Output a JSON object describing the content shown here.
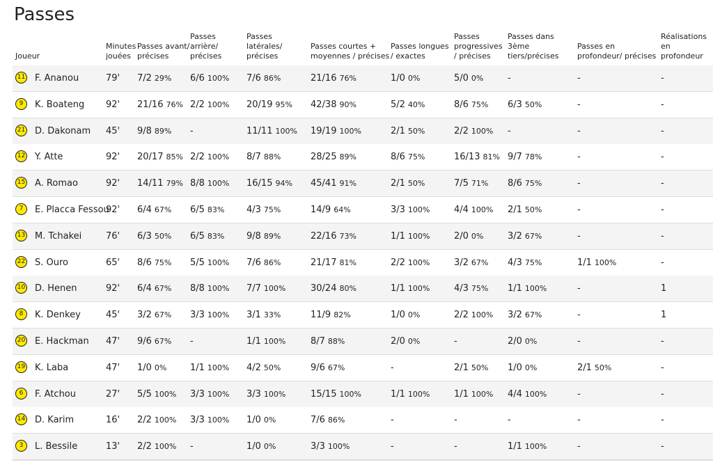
{
  "title": "Passes",
  "table": {
    "headers": [
      "Joueur",
      "Minutes jouées",
      "Passes avant/ précises",
      "Passes arrière/ précises",
      "Passes latérales/ précises",
      "Passes courtes + moyennes / précises",
      "Passes longues / exactes",
      "Passes progressives / précises",
      "Passes dans 3ème tiers/précises",
      "Passes en profondeur/ précises",
      "Réalisations en profondeur"
    ],
    "rows": [
      {
        "number": "11",
        "player": "F. Ananou",
        "minutes": "79'",
        "cells": [
          [
            "7/2",
            "29%"
          ],
          [
            "6/6",
            "100%"
          ],
          [
            "7/6",
            "86%"
          ],
          [
            "21/16",
            "76%"
          ],
          [
            "1/0",
            "0%"
          ],
          [
            "5/0",
            "0%"
          ],
          [
            "-"
          ],
          [
            "-"
          ],
          [
            "-"
          ]
        ]
      },
      {
        "number": "9",
        "player": "K. Boateng",
        "minutes": "92'",
        "cells": [
          [
            "21/16",
            "76%"
          ],
          [
            "2/2",
            "100%"
          ],
          [
            "20/19",
            "95%"
          ],
          [
            "42/38",
            "90%"
          ],
          [
            "5/2",
            "40%"
          ],
          [
            "8/6",
            "75%"
          ],
          [
            "6/3",
            "50%"
          ],
          [
            "-"
          ],
          [
            "-"
          ]
        ]
      },
      {
        "number": "21",
        "player": "D. Dakonam",
        "minutes": "45'",
        "cells": [
          [
            "9/8",
            "89%"
          ],
          [
            "-"
          ],
          [
            "11/11",
            "100%"
          ],
          [
            "19/19",
            "100%"
          ],
          [
            "2/1",
            "50%"
          ],
          [
            "2/2",
            "100%"
          ],
          [
            "-"
          ],
          [
            "-"
          ],
          [
            "-"
          ]
        ]
      },
      {
        "number": "12",
        "player": "Y. Atte",
        "minutes": "92'",
        "cells": [
          [
            "20/17",
            "85%"
          ],
          [
            "2/2",
            "100%"
          ],
          [
            "8/7",
            "88%"
          ],
          [
            "28/25",
            "89%"
          ],
          [
            "8/6",
            "75%"
          ],
          [
            "16/13",
            "81%"
          ],
          [
            "9/7",
            "78%"
          ],
          [
            "-"
          ],
          [
            "-"
          ]
        ]
      },
      {
        "number": "15",
        "player": "A. Romao",
        "minutes": "92'",
        "cells": [
          [
            "14/11",
            "79%"
          ],
          [
            "8/8",
            "100%"
          ],
          [
            "16/15",
            "94%"
          ],
          [
            "45/41",
            "91%"
          ],
          [
            "2/1",
            "50%"
          ],
          [
            "7/5",
            "71%"
          ],
          [
            "8/6",
            "75%"
          ],
          [
            "-"
          ],
          [
            "-"
          ]
        ]
      },
      {
        "number": "7",
        "player": "E. Placca Fessou",
        "minutes": "92'",
        "cells": [
          [
            "6/4",
            "67%"
          ],
          [
            "6/5",
            "83%"
          ],
          [
            "4/3",
            "75%"
          ],
          [
            "14/9",
            "64%"
          ],
          [
            "3/3",
            "100%"
          ],
          [
            "4/4",
            "100%"
          ],
          [
            "2/1",
            "50%"
          ],
          [
            "-"
          ],
          [
            "-"
          ]
        ]
      },
      {
        "number": "13",
        "player": "M. Tchakei",
        "minutes": "76'",
        "cells": [
          [
            "6/3",
            "50%"
          ],
          [
            "6/5",
            "83%"
          ],
          [
            "9/8",
            "89%"
          ],
          [
            "22/16",
            "73%"
          ],
          [
            "1/1",
            "100%"
          ],
          [
            "2/0",
            "0%"
          ],
          [
            "3/2",
            "67%"
          ],
          [
            "-"
          ],
          [
            "-"
          ]
        ]
      },
      {
        "number": "22",
        "player": "S. Ouro",
        "minutes": "65'",
        "cells": [
          [
            "8/6",
            "75%"
          ],
          [
            "5/5",
            "100%"
          ],
          [
            "7/6",
            "86%"
          ],
          [
            "21/17",
            "81%"
          ],
          [
            "2/2",
            "100%"
          ],
          [
            "3/2",
            "67%"
          ],
          [
            "4/3",
            "75%"
          ],
          [
            "1/1",
            "100%"
          ],
          [
            "-"
          ]
        ]
      },
      {
        "number": "10",
        "player": "D. Henen",
        "minutes": "92'",
        "cells": [
          [
            "6/4",
            "67%"
          ],
          [
            "8/8",
            "100%"
          ],
          [
            "7/7",
            "100%"
          ],
          [
            "30/24",
            "80%"
          ],
          [
            "1/1",
            "100%"
          ],
          [
            "4/3",
            "75%"
          ],
          [
            "1/1",
            "100%"
          ],
          [
            "-"
          ],
          [
            "1"
          ]
        ]
      },
      {
        "number": "8",
        "player": "K. Denkey",
        "minutes": "45'",
        "cells": [
          [
            "3/2",
            "67%"
          ],
          [
            "3/3",
            "100%"
          ],
          [
            "3/1",
            "33%"
          ],
          [
            "11/9",
            "82%"
          ],
          [
            "1/0",
            "0%"
          ],
          [
            "2/2",
            "100%"
          ],
          [
            "3/2",
            "67%"
          ],
          [
            "-"
          ],
          [
            "1"
          ]
        ]
      },
      {
        "number": "20",
        "player": "E. Hackman",
        "minutes": "47'",
        "cells": [
          [
            "9/6",
            "67%"
          ],
          [
            "-"
          ],
          [
            "1/1",
            "100%"
          ],
          [
            "8/7",
            "88%"
          ],
          [
            "2/0",
            "0%"
          ],
          [
            "-"
          ],
          [
            "2/0",
            "0%"
          ],
          [
            "-"
          ],
          [
            "-"
          ]
        ]
      },
      {
        "number": "19",
        "player": "K. Laba",
        "minutes": "47'",
        "cells": [
          [
            "1/0",
            "0%"
          ],
          [
            "1/1",
            "100%"
          ],
          [
            "4/2",
            "50%"
          ],
          [
            "9/6",
            "67%"
          ],
          [
            "-"
          ],
          [
            "2/1",
            "50%"
          ],
          [
            "1/0",
            "0%"
          ],
          [
            "2/1",
            "50%"
          ],
          [
            "-"
          ]
        ]
      },
      {
        "number": "6",
        "player": "F. Atchou",
        "minutes": "27'",
        "cells": [
          [
            "5/5",
            "100%"
          ],
          [
            "3/3",
            "100%"
          ],
          [
            "3/3",
            "100%"
          ],
          [
            "15/15",
            "100%"
          ],
          [
            "1/1",
            "100%"
          ],
          [
            "1/1",
            "100%"
          ],
          [
            "4/4",
            "100%"
          ],
          [
            "-"
          ],
          [
            "-"
          ]
        ]
      },
      {
        "number": "14",
        "player": "D. Karim",
        "minutes": "16'",
        "cells": [
          [
            "2/2",
            "100%"
          ],
          [
            "3/3",
            "100%"
          ],
          [
            "1/0",
            "0%"
          ],
          [
            "7/6",
            "86%"
          ],
          [
            "-"
          ],
          [
            "-"
          ],
          [
            "-"
          ],
          [
            "-"
          ],
          [
            "-"
          ]
        ]
      },
      {
        "number": "3",
        "player": "L. Bessile",
        "minutes": "13'",
        "cells": [
          [
            "2/2",
            "100%"
          ],
          [
            "-"
          ],
          [
            "1/0",
            "0%"
          ],
          [
            "3/3",
            "100%"
          ],
          [
            "-"
          ],
          [
            "-"
          ],
          [
            "1/1",
            "100%"
          ],
          [
            "-"
          ],
          [
            "-"
          ]
        ]
      }
    ]
  }
}
